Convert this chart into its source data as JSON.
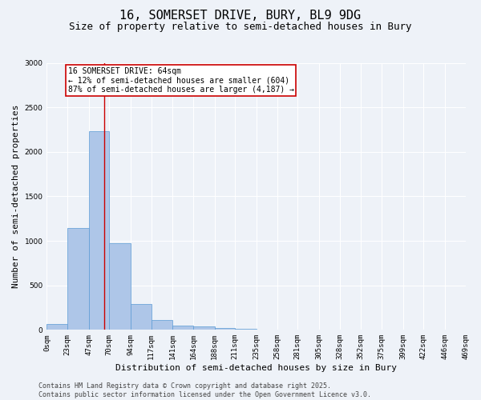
{
  "title": "16, SOMERSET DRIVE, BURY, BL9 9DG",
  "subtitle": "Size of property relative to semi-detached houses in Bury",
  "xlabel": "Distribution of semi-detached houses by size in Bury",
  "ylabel": "Number of semi-detached properties",
  "annotation_line1": "16 SOMERSET DRIVE: 64sqm",
  "annotation_line2": "← 12% of semi-detached houses are smaller (604)",
  "annotation_line3": "87% of semi-detached houses are larger (4,187) →",
  "bin_edges": [
    0,
    23,
    47,
    70,
    94,
    117,
    141,
    164,
    188,
    211,
    235,
    258,
    281,
    305,
    328,
    352,
    375,
    399,
    422,
    446,
    469
  ],
  "bin_counts": [
    70,
    1140,
    2230,
    970,
    290,
    110,
    50,
    40,
    20,
    10,
    0,
    0,
    0,
    0,
    0,
    0,
    0,
    0,
    0,
    0
  ],
  "bar_color": "#aec6e8",
  "bar_edgecolor": "#5b9bd5",
  "vline_color": "#cc0000",
  "vline_x": 64,
  "box_facecolor": "white",
  "box_edgecolor": "#cc0000",
  "background_color": "#eef2f8",
  "grid_color": "white",
  "ylim": [
    0,
    3000
  ],
  "yticks": [
    0,
    500,
    1000,
    1500,
    2000,
    2500,
    3000
  ],
  "tick_labels": [
    "0sqm",
    "23sqm",
    "47sqm",
    "70sqm",
    "94sqm",
    "117sqm",
    "141sqm",
    "164sqm",
    "188sqm",
    "211sqm",
    "235sqm",
    "258sqm",
    "281sqm",
    "305sqm",
    "328sqm",
    "352sqm",
    "375sqm",
    "399sqm",
    "422sqm",
    "446sqm",
    "469sqm"
  ],
  "footer_line1": "Contains HM Land Registry data © Crown copyright and database right 2025.",
  "footer_line2": "Contains public sector information licensed under the Open Government Licence v3.0.",
  "title_fontsize": 11,
  "subtitle_fontsize": 9,
  "axis_label_fontsize": 8,
  "tick_fontsize": 6.5,
  "annotation_fontsize": 7,
  "footer_fontsize": 6
}
